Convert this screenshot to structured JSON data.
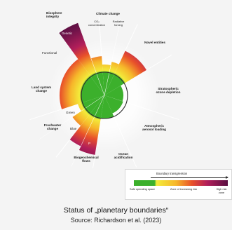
{
  "figure": {
    "labels": {
      "biosphere": "Biosphere integrity",
      "genetic": "Genetic",
      "functional": "Functional",
      "climate": "Climate change",
      "co2": "CO₂ concentration",
      "radiative": "Radiative forcing",
      "novel": "Novel entities",
      "ozone": "Stratospheric ozone depletion",
      "aerosol": "Atmospheric aerosol loading",
      "ocean": "Ocean acidification",
      "biogeo": "Biogeochemical flows",
      "p": "P",
      "n": "N",
      "freshwater": "Freshwater change",
      "green": "Green",
      "blue": "Blue",
      "land": "Land system change"
    },
    "colors": {
      "safe": "#3cb02c",
      "increasing": "#f6b62a",
      "high": "#5a1042",
      "boundary": "#2a2a2a"
    }
  },
  "legend": {
    "header": "Boundary transgression",
    "safe": "Safe operating space",
    "increasing": "Zone of increasing risk",
    "high": "High risk zone"
  },
  "caption": "Status of „planetary boundaries“",
  "source": "Source: Richardson et al. (2023)"
}
